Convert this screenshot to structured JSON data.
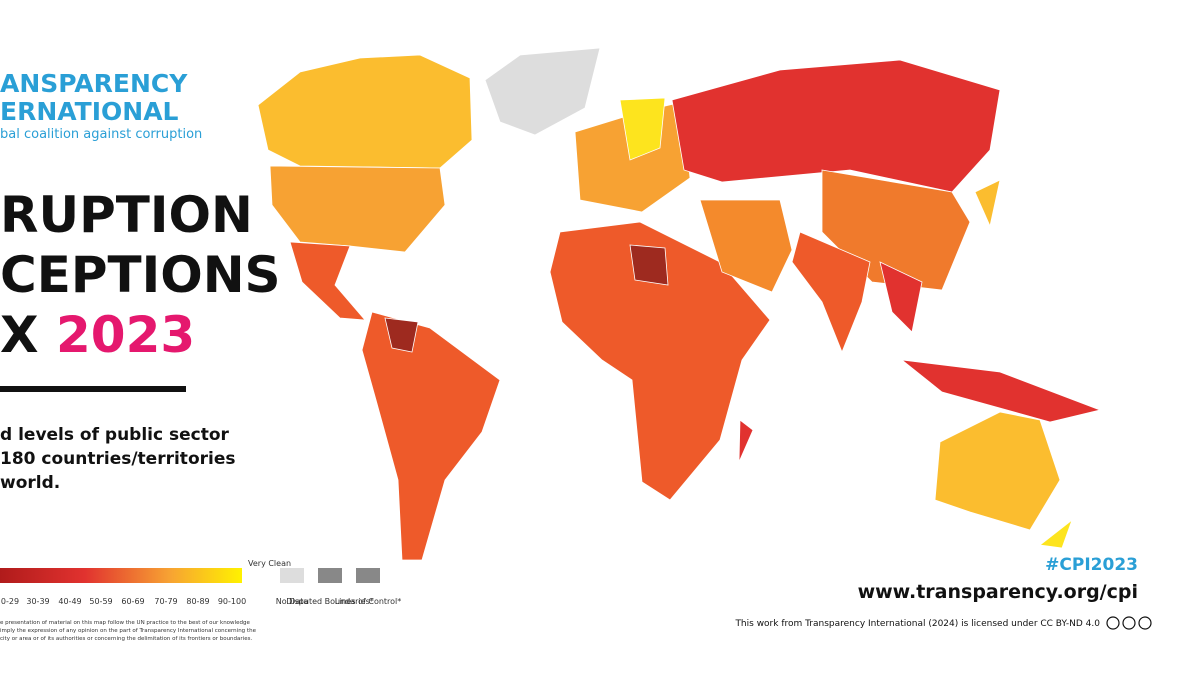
{
  "logo": {
    "line1": "ANSPARENCY",
    "line2": "ERNATIONAL",
    "tagline": "bal coalition against corruption"
  },
  "title": {
    "line1": "RUPTION",
    "line2": "CEPTIONS",
    "line3": "X",
    "year": "2023"
  },
  "description": [
    "d levels of public sector",
    "180 countries/territories",
    "world."
  ],
  "legend": {
    "ranges": [
      "0-29",
      "30-39",
      "40-49",
      "50-59",
      "60-69",
      "70-79",
      "80-89",
      "90-100"
    ],
    "very_clean": "Very Clean",
    "no_data": "No Data",
    "disputed": "Disputed Boundaries*",
    "lines_of_control": "Lines of Control*"
  },
  "disclaimer": [
    "e presentation of material on this map follow the UN practice to the best of our knowledge",
    "imply the expression of any opinion on the part of Transparency International concerning the",
    "city or area or of its authorities or concerning the delimitation of its frontiers or boundaries."
  ],
  "footer": {
    "hashtag": "#CPI2023",
    "url": "www.transparency.org/cpi",
    "license": "This work from Transparency International (2024) is licensed under CC BY-ND 4.0"
  }
}
